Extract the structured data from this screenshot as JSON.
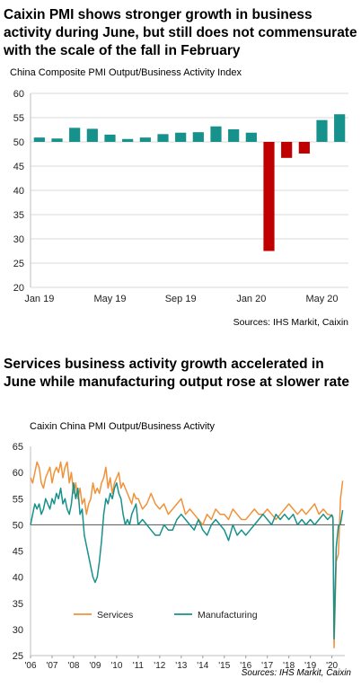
{
  "charts": {
    "top": {
      "headline": "Caixin PMI shows stronger growth in business activity during June, but still does not commensurate with the scale of the fall in February",
      "subtitle": "China Composite PMI Output/Business Activity Index",
      "source": "Sources: IHS Markit, Caixin"
    },
    "bottom": {
      "headline": "Services business activity growth accelerated in June while manufacturing output rose at slower rate",
      "subtitle": "Caixin China PMI Output/Business Activity",
      "source": "Sources: IHS Markit, Caixin"
    }
  },
  "chart_data": [
    {
      "type": "bar",
      "title": "China Composite PMI Output/Business Activity Index",
      "baseline": 50,
      "ylim": [
        20,
        60
      ],
      "yticks": [
        20,
        25,
        30,
        35,
        40,
        45,
        50,
        55,
        60
      ],
      "categories": [
        "Jan 19",
        "Feb 19",
        "Mar 19",
        "Apr 19",
        "May 19",
        "Jun 19",
        "Jul 19",
        "Aug 19",
        "Sep 19",
        "Oct 19",
        "Nov 19",
        "Dec 19",
        "Jan 20",
        "Feb 20",
        "Mar 20",
        "Apr 20",
        "May 20",
        "Jun 20"
      ],
      "xtick_labels": [
        "Jan 19",
        "May 19",
        "Sep 19",
        "Jan 20",
        "May 20"
      ],
      "values": [
        50.9,
        50.7,
        52.9,
        52.7,
        51.5,
        50.6,
        50.9,
        51.6,
        51.9,
        52.0,
        53.2,
        52.6,
        51.9,
        27.5,
        46.7,
        47.6,
        54.5,
        55.7
      ],
      "colors": {
        "above": "#17918b",
        "below": "#c00000"
      },
      "grid": true
    },
    {
      "type": "line",
      "title": "Caixin China PMI Output/Business Activity",
      "ylim": [
        25,
        65
      ],
      "yticks": [
        25,
        30,
        35,
        40,
        45,
        50,
        55,
        60,
        65
      ],
      "xlim": [
        2006.0,
        2020.6
      ],
      "xtick_labels": [
        "'06",
        "'07",
        "'08",
        "'09",
        "'10",
        "'11",
        "'12",
        "'13",
        "'14",
        "'15",
        "'16",
        "'17",
        "'18",
        "'19",
        "'20"
      ],
      "reference_line": 50,
      "legend_position": "lower-left",
      "series": [
        {
          "name": "Services",
          "color": "#f0923a",
          "x": [
            2006.0,
            2006.1,
            2006.2,
            2006.3,
            2006.4,
            2006.5,
            2006.6,
            2006.7,
            2006.8,
            2006.9,
            2007.0,
            2007.1,
            2007.2,
            2007.3,
            2007.4,
            2007.5,
            2007.6,
            2007.7,
            2007.8,
            2007.9,
            2008.0,
            2008.1,
            2008.2,
            2008.3,
            2008.4,
            2008.5,
            2008.6,
            2008.7,
            2008.8,
            2008.9,
            2009.0,
            2009.1,
            2009.2,
            2009.3,
            2009.4,
            2009.5,
            2009.6,
            2009.7,
            2009.8,
            2009.9,
            2010.0,
            2010.1,
            2010.2,
            2010.3,
            2010.4,
            2010.5,
            2010.6,
            2010.7,
            2010.8,
            2010.9,
            2011.0,
            2011.2,
            2011.4,
            2011.6,
            2011.8,
            2012.0,
            2012.2,
            2012.4,
            2012.6,
            2012.8,
            2013.0,
            2013.2,
            2013.4,
            2013.6,
            2013.8,
            2014.0,
            2014.2,
            2014.4,
            2014.6,
            2014.8,
            2015.0,
            2015.2,
            2015.4,
            2015.6,
            2015.8,
            2016.0,
            2016.2,
            2016.4,
            2016.6,
            2016.8,
            2017.0,
            2017.2,
            2017.4,
            2017.6,
            2017.8,
            2018.0,
            2018.2,
            2018.4,
            2018.6,
            2018.8,
            2019.0,
            2019.2,
            2019.4,
            2019.6,
            2019.8,
            2020.0,
            2020.05,
            2020.1,
            2020.2,
            2020.3,
            2020.4,
            2020.5
          ],
          "values": [
            59,
            58,
            60,
            62,
            61,
            58,
            57,
            59,
            60,
            61,
            58,
            60,
            61,
            60,
            62,
            59,
            61,
            62,
            58,
            60,
            56,
            58,
            55,
            57,
            54,
            55,
            52,
            54,
            55,
            58,
            56,
            57,
            56,
            58,
            59,
            61,
            57,
            59,
            56,
            58,
            59,
            60,
            57,
            58,
            57,
            56,
            55,
            54,
            56,
            55,
            55,
            53,
            54,
            56,
            54,
            53,
            54,
            52,
            53,
            54,
            55,
            52,
            53,
            52,
            51,
            50,
            52,
            51,
            53,
            52,
            52,
            51,
            53,
            52,
            51,
            51,
            52,
            53,
            52,
            52,
            53,
            52,
            51,
            52,
            53,
            54,
            53,
            52,
            53,
            52,
            53,
            54,
            52,
            53,
            52,
            51.8,
            51.5,
            26.5,
            43.0,
            44.4,
            55.0,
            58.4
          ]
        },
        {
          "name": "Manufacturing",
          "color": "#17918b",
          "x": [
            2006.0,
            2006.1,
            2006.2,
            2006.3,
            2006.4,
            2006.5,
            2006.6,
            2006.7,
            2006.8,
            2006.9,
            2007.0,
            2007.1,
            2007.2,
            2007.3,
            2007.4,
            2007.5,
            2007.6,
            2007.7,
            2007.8,
            2007.9,
            2008.0,
            2008.1,
            2008.2,
            2008.3,
            2008.4,
            2008.5,
            2008.6,
            2008.7,
            2008.8,
            2008.9,
            2009.0,
            2009.1,
            2009.2,
            2009.3,
            2009.4,
            2009.5,
            2009.6,
            2009.7,
            2009.8,
            2009.9,
            2010.0,
            2010.1,
            2010.2,
            2010.3,
            2010.4,
            2010.5,
            2010.6,
            2010.7,
            2010.8,
            2010.9,
            2011.0,
            2011.2,
            2011.4,
            2011.6,
            2011.8,
            2012.0,
            2012.2,
            2012.4,
            2012.6,
            2012.8,
            2013.0,
            2013.2,
            2013.4,
            2013.6,
            2013.8,
            2014.0,
            2014.2,
            2014.4,
            2014.6,
            2014.8,
            2015.0,
            2015.2,
            2015.4,
            2015.6,
            2015.8,
            2016.0,
            2016.2,
            2016.4,
            2016.6,
            2016.8,
            2017.0,
            2017.2,
            2017.4,
            2017.6,
            2017.8,
            2018.0,
            2018.2,
            2018.4,
            2018.6,
            2018.8,
            2019.0,
            2019.2,
            2019.4,
            2019.6,
            2019.8,
            2020.0,
            2020.05,
            2020.1,
            2020.2,
            2020.3,
            2020.4,
            2020.5
          ],
          "values": [
            50,
            52,
            54,
            53,
            54,
            52,
            53,
            55,
            54,
            53,
            55,
            54,
            56,
            55,
            57,
            54,
            55,
            53,
            52,
            54,
            58,
            55,
            57,
            52,
            53,
            48,
            46,
            44,
            42,
            40,
            39,
            40,
            43,
            47,
            52,
            55,
            54,
            56,
            55,
            57,
            58,
            56,
            55,
            52,
            50,
            51,
            50,
            52,
            53,
            54,
            50,
            51,
            50,
            49,
            48,
            48,
            50,
            49,
            49,
            51,
            52,
            51,
            50,
            49,
            51,
            49,
            48,
            50,
            51,
            50,
            49,
            47,
            50,
            48,
            49,
            48,
            49,
            50,
            51,
            52,
            51,
            50,
            52,
            51,
            52,
            51,
            52,
            50,
            51,
            50,
            51,
            50,
            51,
            52,
            51,
            51.9,
            51.1,
            28.2,
            45.7,
            49.7,
            50.2,
            52.8
          ]
        }
      ]
    }
  ]
}
